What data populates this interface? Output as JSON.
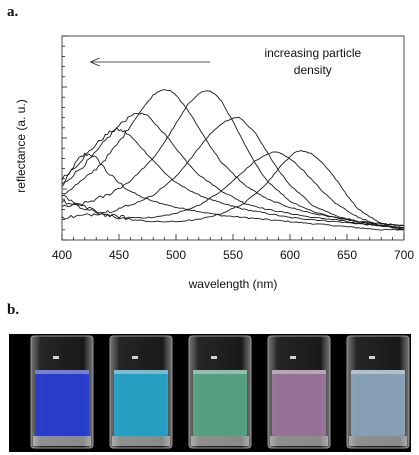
{
  "panels": {
    "a": "a.",
    "b": "b."
  },
  "chart_data": {
    "type": "line",
    "title": "",
    "xlabel": "wavelength (nm)",
    "ylabel": "reflectance (a. u.)",
    "xlim": [
      400,
      700
    ],
    "ylim": [
      0,
      1
    ],
    "x_ticks": [
      400,
      450,
      500,
      550,
      600,
      650,
      700
    ],
    "y_tick_labels_shown": false,
    "grid": false,
    "legend": "none",
    "annotation": {
      "lines": [
        "increasing particle",
        "density"
      ],
      "arrow_direction": "left"
    },
    "line_color": "#1a1a1a",
    "note": "y values are relative reflectance read from the unlabeled y-axis (0 = bottom, 1 = top)",
    "series": [
      {
        "peak_nm": 426,
        "x": [
          400,
          405,
          410,
          415,
          420,
          425,
          430,
          435,
          440,
          450,
          460,
          470,
          480,
          500,
          520,
          540,
          560,
          580,
          600,
          620,
          640,
          660,
          680,
          700
        ],
        "values": [
          0.26,
          0.31,
          0.36,
          0.4,
          0.42,
          0.42,
          0.4,
          0.37,
          0.33,
          0.28,
          0.24,
          0.21,
          0.19,
          0.16,
          0.14,
          0.12,
          0.11,
          0.1,
          0.09,
          0.08,
          0.07,
          0.06,
          0.05,
          0.05
        ]
      },
      {
        "peak_nm": 448,
        "x": [
          400,
          410,
          420,
          430,
          440,
          445,
          450,
          455,
          460,
          470,
          480,
          490,
          500,
          520,
          540,
          560,
          580,
          600,
          620,
          640,
          660,
          680,
          700
        ],
        "values": [
          0.3,
          0.35,
          0.41,
          0.47,
          0.52,
          0.54,
          0.54,
          0.53,
          0.51,
          0.45,
          0.39,
          0.33,
          0.28,
          0.22,
          0.18,
          0.15,
          0.13,
          0.11,
          0.1,
          0.09,
          0.08,
          0.07,
          0.06
        ]
      },
      {
        "peak_nm": 468,
        "x": [
          400,
          410,
          420,
          430,
          440,
          450,
          460,
          465,
          470,
          475,
          480,
          490,
          500,
          510,
          520,
          540,
          560,
          580,
          600,
          620,
          640,
          660,
          680,
          700
        ],
        "values": [
          0.27,
          0.32,
          0.37,
          0.43,
          0.5,
          0.56,
          0.61,
          0.62,
          0.62,
          0.61,
          0.58,
          0.52,
          0.45,
          0.38,
          0.32,
          0.24,
          0.18,
          0.15,
          0.13,
          0.11,
          0.1,
          0.08,
          0.07,
          0.06
        ]
      },
      {
        "peak_nm": 492,
        "x": [
          400,
          410,
          420,
          430,
          440,
          450,
          460,
          470,
          480,
          485,
          490,
          495,
          500,
          510,
          520,
          530,
          540,
          560,
          580,
          600,
          620,
          640,
          660,
          680,
          700
        ],
        "values": [
          0.22,
          0.26,
          0.3,
          0.35,
          0.41,
          0.48,
          0.56,
          0.64,
          0.71,
          0.73,
          0.74,
          0.73,
          0.71,
          0.64,
          0.55,
          0.46,
          0.38,
          0.27,
          0.2,
          0.16,
          0.13,
          0.11,
          0.09,
          0.08,
          0.07
        ]
      },
      {
        "peak_nm": 527,
        "x": [
          400,
          420,
          440,
          460,
          480,
          490,
          500,
          510,
          520,
          525,
          530,
          535,
          540,
          550,
          560,
          570,
          580,
          600,
          620,
          640,
          660,
          680,
          700
        ],
        "values": [
          0.16,
          0.18,
          0.22,
          0.29,
          0.4,
          0.48,
          0.57,
          0.66,
          0.72,
          0.73,
          0.73,
          0.71,
          0.68,
          0.58,
          0.47,
          0.37,
          0.29,
          0.19,
          0.14,
          0.11,
          0.09,
          0.08,
          0.07
        ]
      },
      {
        "peak_nm": 553,
        "x": [
          400,
          420,
          440,
          460,
          480,
          500,
          510,
          520,
          530,
          540,
          550,
          555,
          560,
          570,
          580,
          590,
          600,
          620,
          640,
          660,
          680,
          700
        ],
        "values": [
          0.11,
          0.12,
          0.14,
          0.17,
          0.22,
          0.31,
          0.38,
          0.45,
          0.52,
          0.57,
          0.6,
          0.6,
          0.58,
          0.52,
          0.43,
          0.34,
          0.27,
          0.17,
          0.12,
          0.09,
          0.07,
          0.06
        ]
      },
      {
        "peak_nm": 585,
        "x": [
          400,
          420,
          440,
          460,
          480,
          500,
          520,
          540,
          560,
          570,
          580,
          585,
          590,
          600,
          610,
          620,
          630,
          640,
          660,
          680,
          700
        ],
        "values": [
          0.19,
          0.15,
          0.12,
          0.11,
          0.11,
          0.13,
          0.17,
          0.24,
          0.34,
          0.39,
          0.42,
          0.43,
          0.43,
          0.4,
          0.35,
          0.29,
          0.23,
          0.18,
          0.11,
          0.07,
          0.05
        ]
      },
      {
        "peak_nm": 610,
        "x": [
          400,
          420,
          440,
          460,
          480,
          500,
          520,
          540,
          560,
          580,
          590,
          600,
          605,
          610,
          615,
          620,
          630,
          640,
          650,
          660,
          680,
          700
        ],
        "values": [
          0.22,
          0.16,
          0.12,
          0.1,
          0.09,
          0.09,
          0.1,
          0.13,
          0.18,
          0.28,
          0.35,
          0.41,
          0.43,
          0.44,
          0.43,
          0.42,
          0.37,
          0.3,
          0.22,
          0.15,
          0.08,
          0.05
        ]
      }
    ]
  },
  "photo": {
    "vials": [
      {
        "color": "#2840d8"
      },
      {
        "color": "#26a9cf"
      },
      {
        "color": "#5aa98a"
      },
      {
        "color": "#a07aa0"
      },
      {
        "color": "#8fa9c0"
      }
    ]
  }
}
